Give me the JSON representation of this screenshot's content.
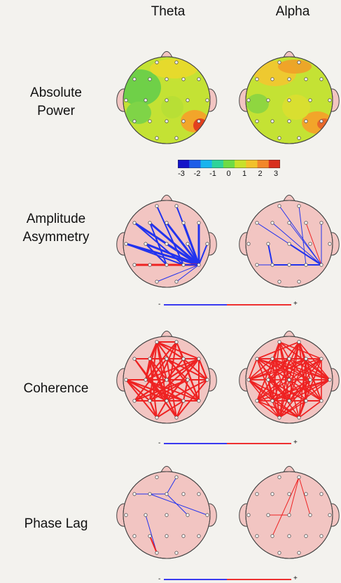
{
  "columns": [
    "Theta",
    "Alpha"
  ],
  "rows": [
    {
      "id": "absolute-power",
      "label_lines": [
        "Absolute",
        "Power"
      ]
    },
    {
      "id": "amplitude-asymmetry",
      "label_lines": [
        "Amplitude",
        "Asymmetry"
      ]
    },
    {
      "id": "coherence",
      "label_lines": [
        "Coherence"
      ]
    },
    {
      "id": "phase-lag",
      "label_lines": [
        "Phase Lag"
      ]
    }
  ],
  "colorbar": {
    "ticks": [
      "-3",
      "-2",
      "-1",
      "0",
      "1",
      "2",
      "3"
    ],
    "colors": [
      "#1515c8",
      "#1f5ee8",
      "#19b4ee",
      "#2fd39a",
      "#6edb45",
      "#c8e02a",
      "#f2c12a",
      "#f2872a",
      "#d8301e"
    ]
  },
  "sign_bar": {
    "negative": "-",
    "positive": "+",
    "negative_color": "#3a3af0",
    "positive_color": "#ee3030"
  },
  "colors": {
    "head_fill": "#f2c5c2",
    "head_stroke": "#444444",
    "positive_link": "#ee2222",
    "negative_link": "#2233ee",
    "background": "#f3f2ee"
  }
}
